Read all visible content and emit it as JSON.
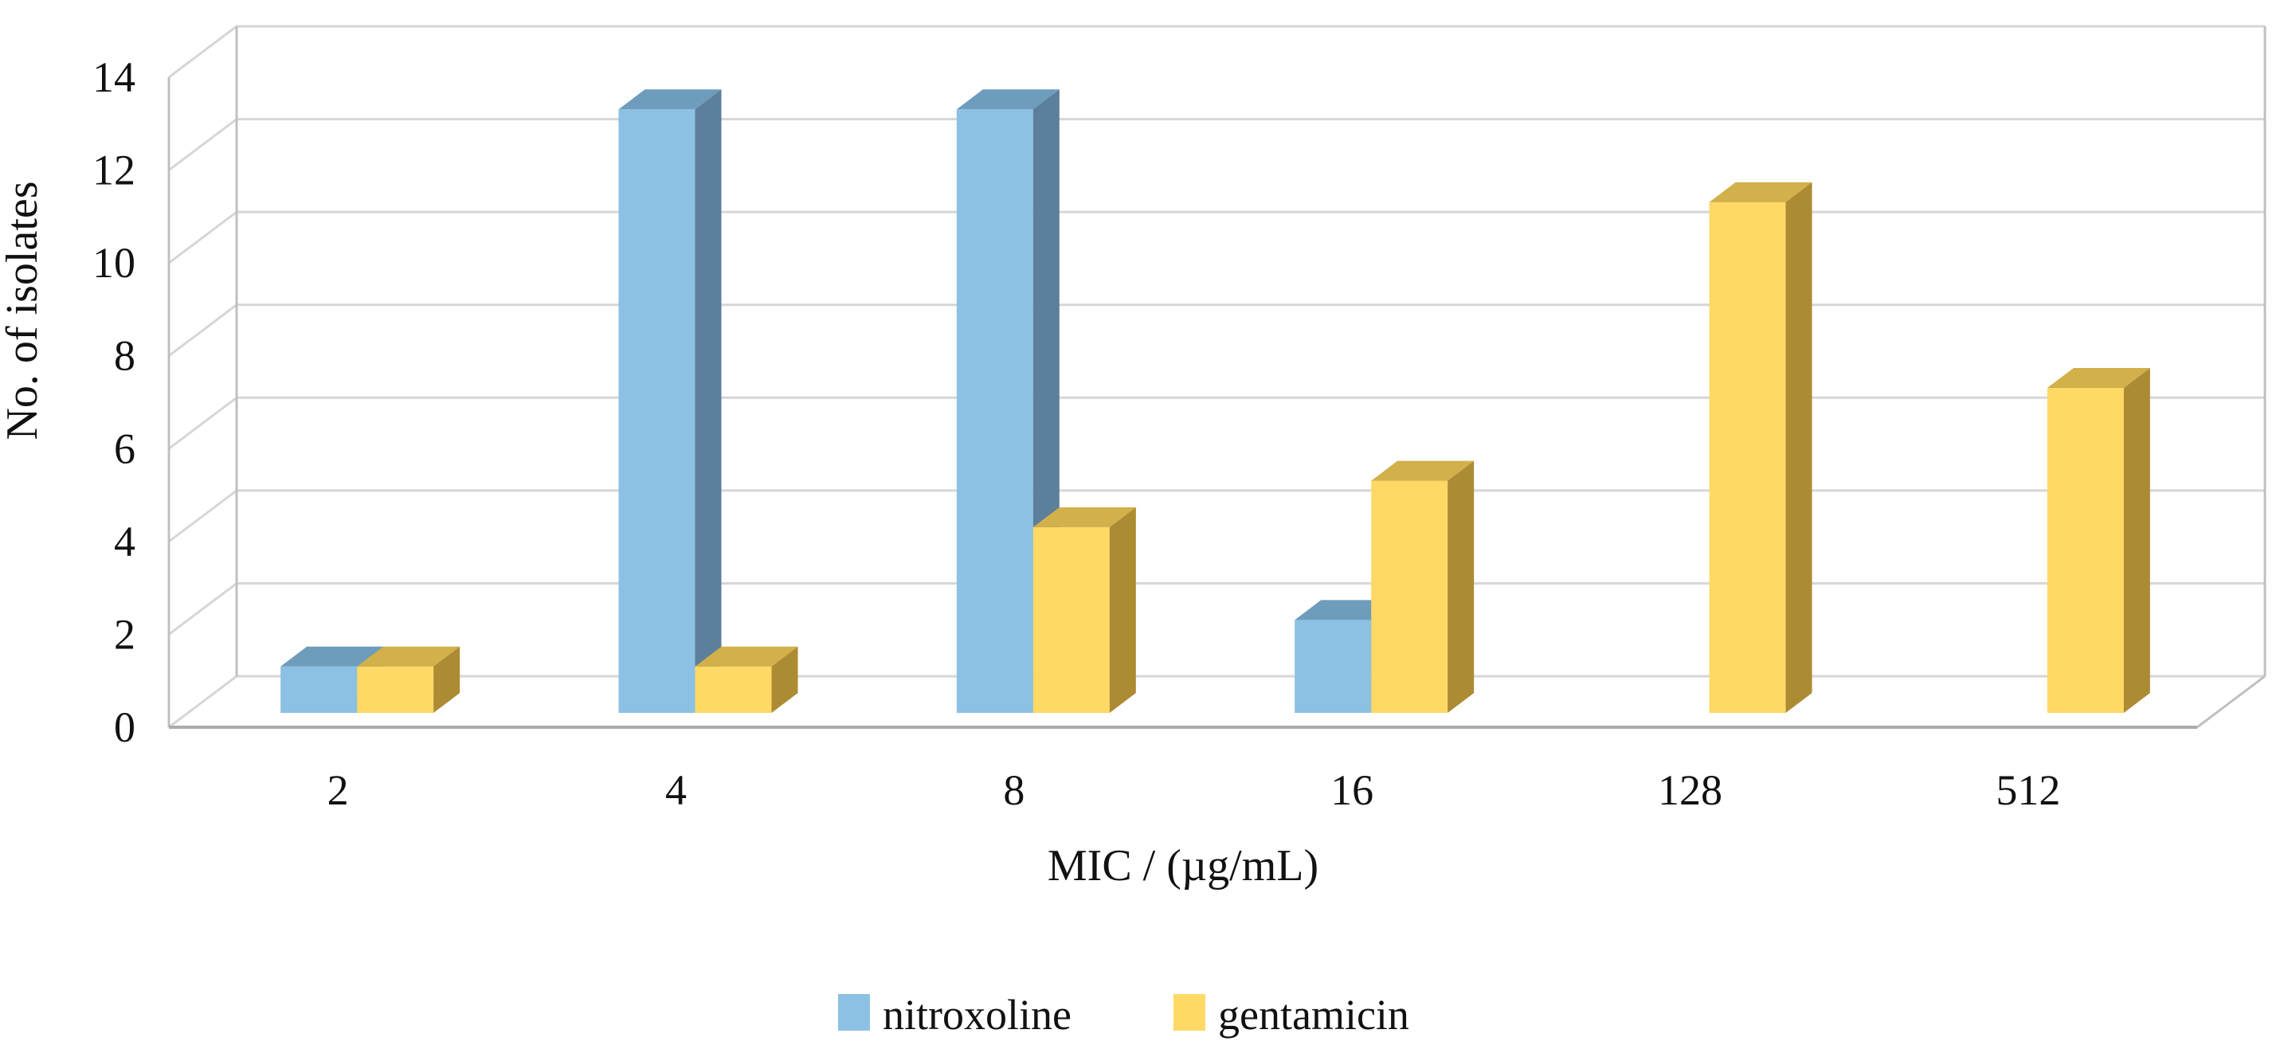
{
  "figure": {
    "title": "",
    "background_color": "#FFFFFF",
    "text_color": "#111111"
  },
  "chart_data": {
    "type": "bar",
    "style": "3d-clustered-column",
    "title": "",
    "xlabel": "MIC / (µg/mL)",
    "ylabel": "No. of isolates",
    "categories": [
      "2",
      "4",
      "8",
      "16",
      "128",
      "512"
    ],
    "series": [
      {
        "name": "nitroxoline",
        "values": [
          1,
          13,
          13,
          2,
          0,
          0
        ],
        "color_front": "#8CC1E3",
        "color_top": "#6D9CBD",
        "color_side": "#5C7F9B"
      },
      {
        "name": "gentamicin",
        "values": [
          1,
          1,
          4,
          5,
          11,
          7
        ],
        "color_front": "#FFD966",
        "color_top": "#D2B04A",
        "color_side": "#AC8B33"
      }
    ],
    "ylim": [
      0,
      14
    ],
    "yticks": [
      0,
      2,
      4,
      6,
      8,
      10,
      12,
      14
    ],
    "ytick_step": 2,
    "grid": true,
    "gridline_color": "#D6D6D6",
    "wall_edge_color": "#C0C0C0",
    "baseline_color": "#ABABAB",
    "legend_position": "bottom"
  }
}
